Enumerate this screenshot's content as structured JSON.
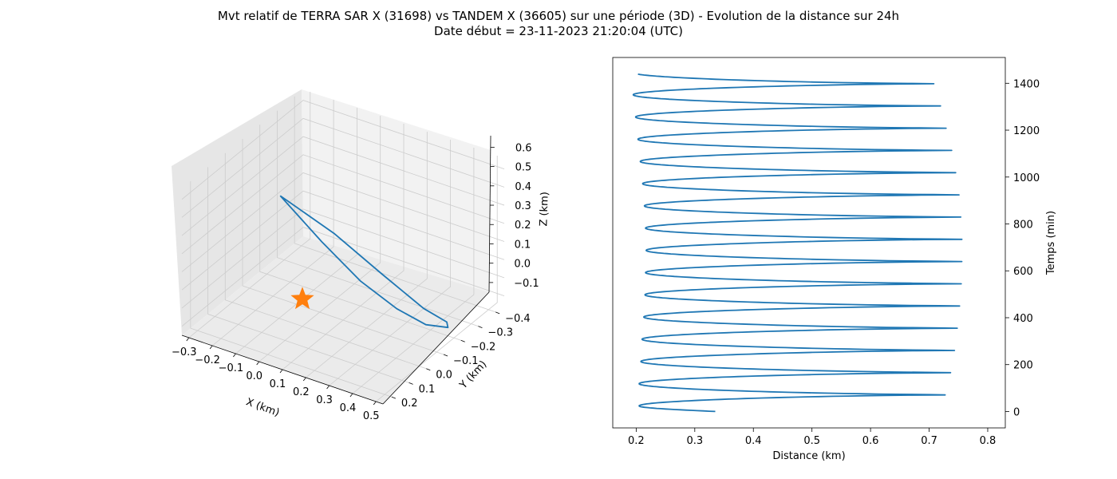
{
  "title_line1": "Mvt relatif de TERRA SAR X (31698) vs TANDEM X (36605) sur une période (3D) - Evolution de la distance sur 24h",
  "title_line2": "Date début = 23-11-2023 21:20:04 (UTC)",
  "colors": {
    "series": "#1f77b4",
    "marker": "#ff7f0e",
    "pane": "#f2f2f2",
    "grid": "#cccccc"
  },
  "chart_data": [
    {
      "type": "line3d",
      "xlabel": "X (km)",
      "ylabel": "Y (km)",
      "zlabel": "Z (km)",
      "xticks": [
        "−0.3",
        "−0.2",
        "−0.1",
        "0.0",
        "0.1",
        "0.2",
        "0.3",
        "0.4",
        "0.5"
      ],
      "yticks": [
        "−0.4",
        "−0.3",
        "−0.2",
        "−0.1",
        "0.0",
        "0.1",
        "0.2"
      ],
      "zticks": [
        "−0.1",
        "0.0",
        "0.1",
        "0.2",
        "0.3",
        "0.4",
        "0.5",
        "0.6"
      ],
      "grid": true,
      "trajectory_x": [
        -0.08,
        0.06,
        0.19,
        0.3,
        0.38,
        0.43,
        0.44,
        0.4,
        0.28,
        0.12,
        -0.08
      ],
      "trajectory_y": [
        0.02,
        -0.03,
        -0.08,
        -0.14,
        -0.2,
        -0.26,
        -0.24,
        -0.16,
        -0.08,
        -0.02,
        0.02
      ],
      "trajectory_z": [
        0.55,
        0.32,
        0.12,
        -0.03,
        -0.13,
        -0.17,
        -0.12,
        0.0,
        0.2,
        0.4,
        0.55
      ],
      "marker": {
        "shape": "star",
        "x": 0.0,
        "y": 0.0,
        "z": 0.0
      }
    },
    {
      "type": "line",
      "xlabel": "Distance (km)",
      "ylabel": "Temps (min)",
      "xlim": [
        0.16,
        0.83
      ],
      "ylim": [
        -70,
        1510
      ],
      "xticks": [
        "0.2",
        "0.3",
        "0.4",
        "0.5",
        "0.6",
        "0.7",
        "0.8"
      ],
      "yticks": [
        "0",
        "200",
        "400",
        "600",
        "800",
        "1000",
        "1200",
        "1400"
      ],
      "grid": false,
      "period_min": 94.8,
      "t_end_min": 1440,
      "series": [
        {
          "minima": [
            0.205,
            0.205,
            0.208,
            0.21,
            0.213,
            0.215,
            0.216,
            0.217,
            0.216,
            0.214,
            0.211,
            0.207,
            0.203,
            0.199,
            0.195
          ],
          "maxima": [
            0.77,
            0.78,
            0.787,
            0.792,
            0.796,
            0.799,
            0.8,
            0.8,
            0.798,
            0.795,
            0.789,
            0.782,
            0.772,
            0.762,
            0.75,
            0.74
          ]
        }
      ]
    }
  ]
}
